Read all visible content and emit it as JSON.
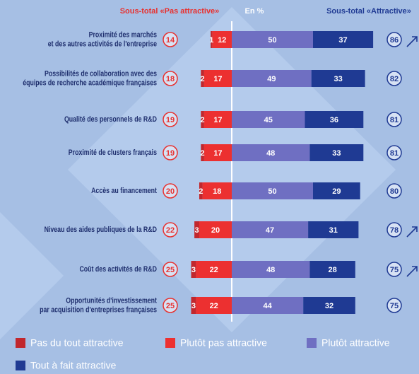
{
  "chart_data": {
    "type": "diverging-bar",
    "unit_label": "En %",
    "categories": [
      "Proximité des marchés\net des autres activités de l'entreprise",
      "Possibilités de collaboration avec des\néquipes de recherche académique françaises",
      "Qualité des personnels de R&D",
      "Proximité de clusters français",
      "Accès au financement",
      "Niveau des aides publiques de la R&D",
      "Coût des activités de R&D",
      "Opportunités d'investissement\npar acquisition d'entreprises françaises"
    ],
    "series": [
      {
        "name": "Pas du tout attractive",
        "color": "#c1272d",
        "side": "left",
        "values": [
          1,
          2,
          2,
          2,
          2,
          3,
          3,
          3
        ]
      },
      {
        "name": "Plutôt pas attractive",
        "color": "#ec3030",
        "side": "left",
        "values": [
          12,
          17,
          17,
          17,
          18,
          20,
          22,
          22
        ]
      },
      {
        "name": "Plutôt attractive",
        "color": "#6f6fc2",
        "side": "right",
        "values": [
          50,
          49,
          45,
          48,
          50,
          47,
          48,
          44
        ]
      },
      {
        "name": "Tout à fait attractive",
        "color": "#1f3a93",
        "side": "right",
        "values": [
          37,
          33,
          36,
          33,
          29,
          31,
          28,
          32
        ]
      }
    ],
    "subtotals": [
      {
        "name": "Sous-total «Pas attractive»",
        "color": "#e8312f",
        "side": "left",
        "values": [
          14,
          18,
          19,
          19,
          20,
          22,
          25,
          25
        ]
      },
      {
        "name": "Sous-total «Attractive»",
        "color": "#1f3a93",
        "side": "right",
        "values": [
          86,
          82,
          81,
          81,
          80,
          78,
          75,
          75
        ]
      }
    ]
  }
}
